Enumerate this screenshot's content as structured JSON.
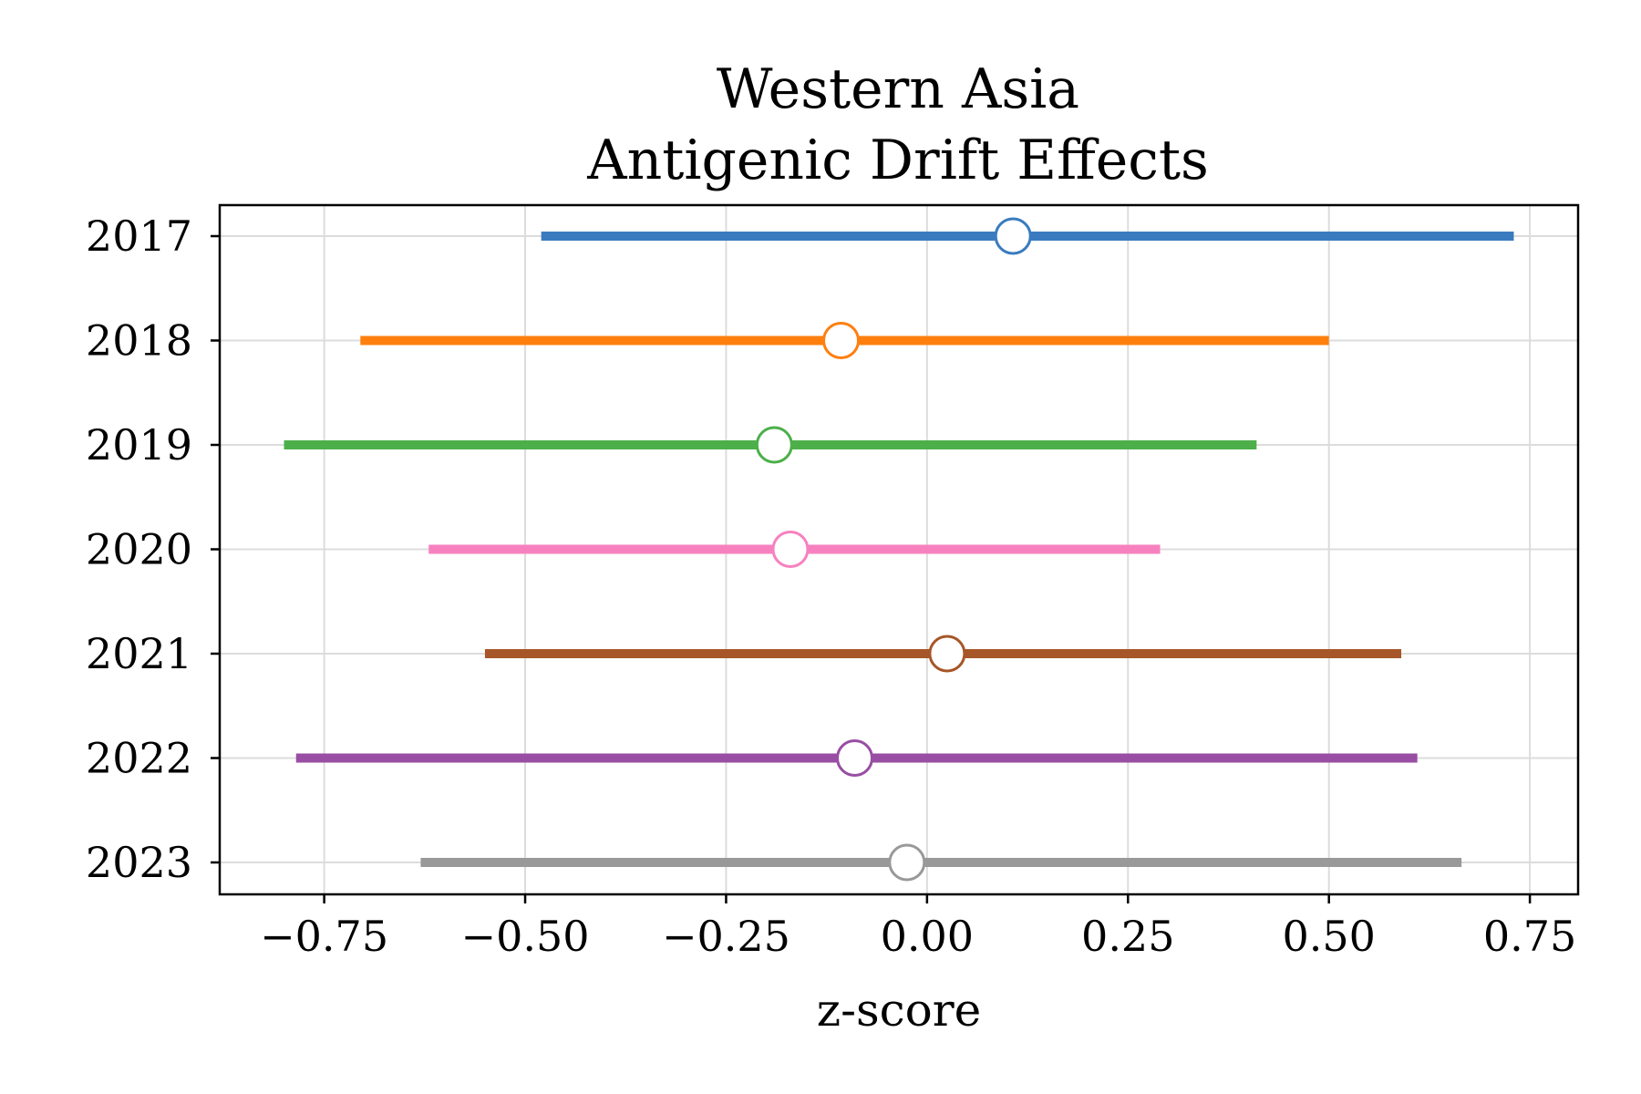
{
  "chart_data": {
    "type": "forest",
    "title": [
      "Western Asia",
      "Antigenic Drift Effects"
    ],
    "xlabel": "z-score",
    "ylabel": "",
    "xlim": [
      -0.88,
      0.81
    ],
    "xticks": [
      -0.75,
      -0.5,
      -0.25,
      0.0,
      0.25,
      0.5,
      0.75
    ],
    "xtick_labels": [
      "−0.75",
      "−0.50",
      "−0.25",
      "0.00",
      "0.25",
      "0.50",
      "0.75"
    ],
    "grid": true,
    "categories": [
      "2017",
      "2018",
      "2019",
      "2020",
      "2021",
      "2022",
      "2023"
    ],
    "series": [
      {
        "category": "2017",
        "estimate": 0.107,
        "lower": -0.48,
        "upper": 0.73,
        "color": "#3a7bbf"
      },
      {
        "category": "2018",
        "estimate": -0.107,
        "lower": -0.705,
        "upper": 0.5,
        "color": "#ff7f0e"
      },
      {
        "category": "2019",
        "estimate": -0.19,
        "lower": -0.8,
        "upper": 0.41,
        "color": "#4daf4a"
      },
      {
        "category": "2020",
        "estimate": -0.17,
        "lower": -0.62,
        "upper": 0.29,
        "color": "#f781bf"
      },
      {
        "category": "2021",
        "estimate": 0.025,
        "lower": -0.55,
        "upper": 0.59,
        "color": "#a65628"
      },
      {
        "category": "2022",
        "estimate": -0.09,
        "lower": -0.785,
        "upper": 0.61,
        "color": "#984ea3"
      },
      {
        "category": "2023",
        "estimate": -0.025,
        "lower": -0.63,
        "upper": 0.665,
        "color": "#999999"
      }
    ]
  }
}
